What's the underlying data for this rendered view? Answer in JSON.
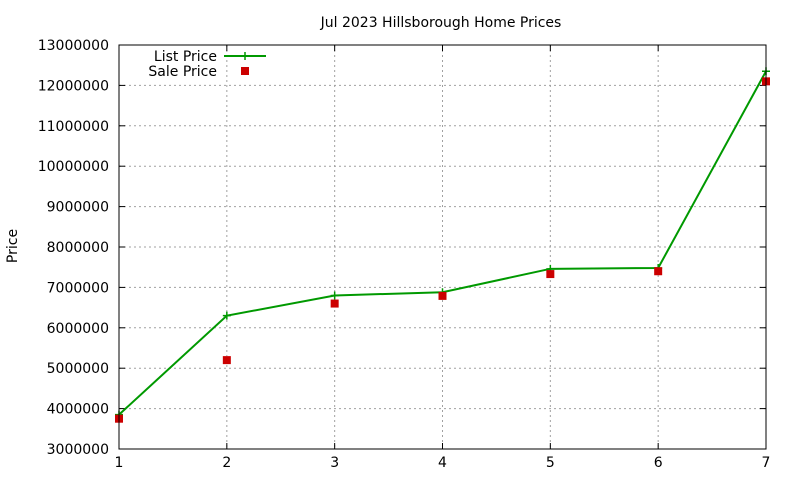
{
  "chart_data": {
    "type": "line",
    "title": "Jul 2023 Hillsborough Home Prices",
    "xlabel": "",
    "ylabel": "Price",
    "xlim": [
      1,
      7
    ],
    "ylim": [
      3000000,
      13000000
    ],
    "x_ticks": [
      "1",
      "2",
      "3",
      "4",
      "5",
      "6",
      "7"
    ],
    "y_ticks": [
      "3000000",
      "4000000",
      "5000000",
      "6000000",
      "7000000",
      "8000000",
      "9000000",
      "10000000",
      "11000000",
      "12000000",
      "13000000"
    ],
    "grid": true,
    "legend_position": "top-left",
    "x": [
      1,
      2,
      3,
      4,
      5,
      6,
      7
    ],
    "series": [
      {
        "name": "List Price",
        "style": "line+cross",
        "color": "#009900",
        "values": [
          3850000,
          6300000,
          6800000,
          6880000,
          7460000,
          7480000,
          12350000
        ]
      },
      {
        "name": "Sale Price",
        "style": "square-points",
        "color": "#cc0000",
        "values": [
          3750000,
          5200000,
          6600000,
          6790000,
          7330000,
          7400000,
          12100000
        ]
      }
    ]
  }
}
